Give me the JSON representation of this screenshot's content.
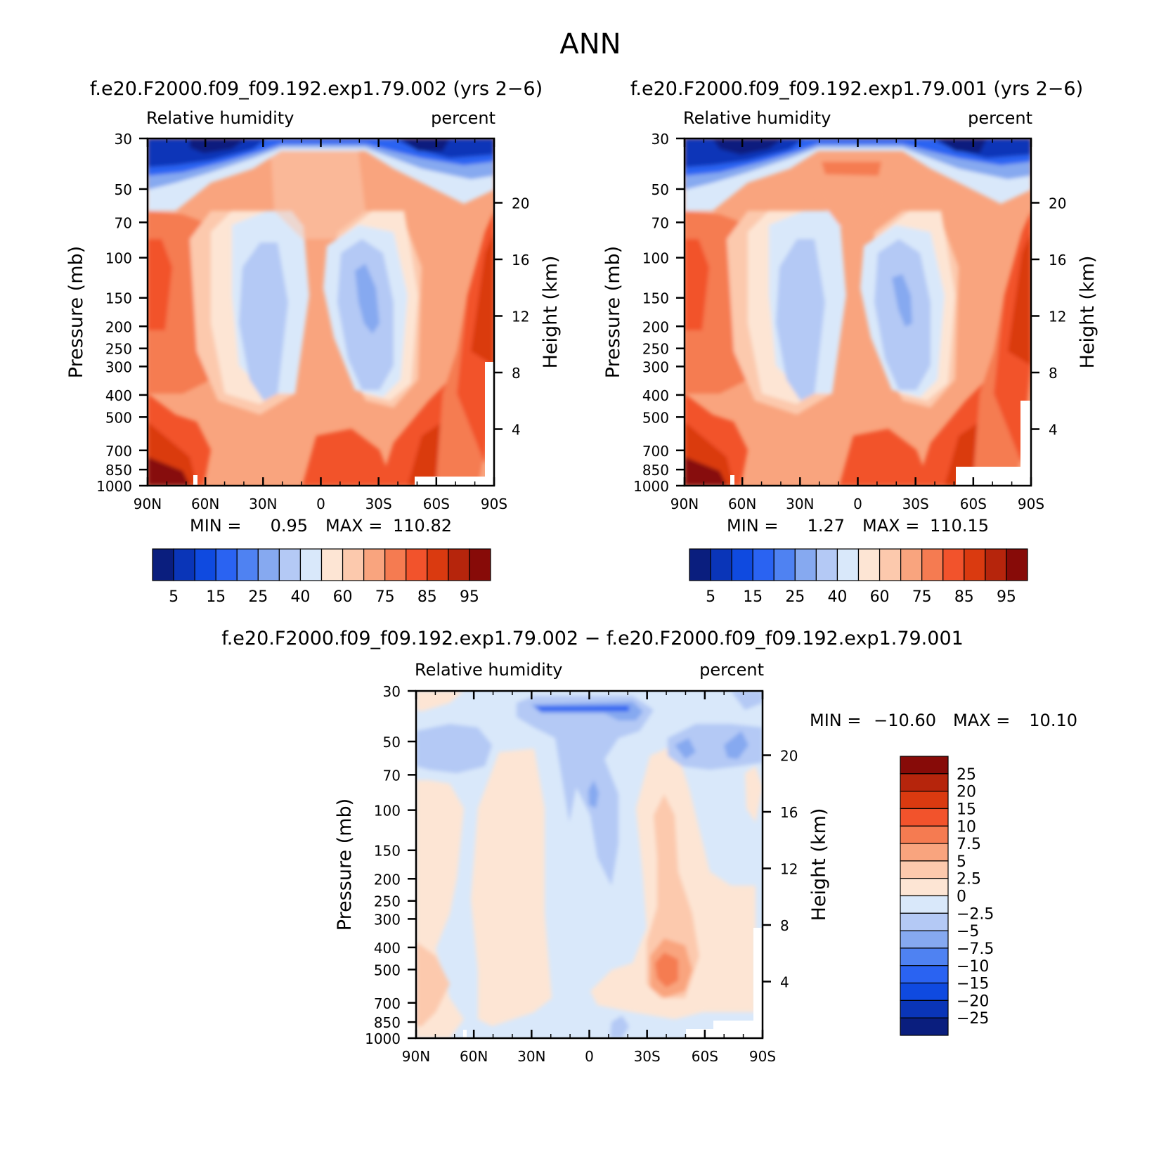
{
  "figure_title": "ANN",
  "chart_data": [
    {
      "type": "heatmap",
      "title": "f.e20.F2000.f09_f09.192.exp1.79.002 (yrs 2−6)",
      "variable_label": "Relative humidity",
      "units_label": "percent",
      "ylabel": "Pressure (mb)",
      "ylabel_right": "Height (km)",
      "x_ticks": [
        "90N",
        "60N",
        "30N",
        "0",
        "30S",
        "60S",
        "90S"
      ],
      "y_ticks": [
        "30",
        "50",
        "70",
        "100",
        "150",
        "200",
        "250",
        "300",
        "400",
        "500",
        "700",
        "850",
        "1000"
      ],
      "height_ticks": [
        "20",
        "16",
        "12",
        "8",
        "4"
      ],
      "min_label": "MIN =",
      "min_value": "0.95",
      "max_label": "MAX =",
      "max_value": "110.82",
      "colorbar_labels": [
        "5",
        "15",
        "25",
        "40",
        "60",
        "75",
        "85",
        "95"
      ],
      "colorbar_colors": [
        "#0a1e7e",
        "#0a35b8",
        "#0f4ae0",
        "#2a63f2",
        "#4f82f2",
        "#86a9f0",
        "#b4c9f5",
        "#d9e8fa",
        "#fde5d4",
        "#fcc9ad",
        "#f9a47e",
        "#f57b51",
        "#f2532c",
        "#da3a10",
        "#b6250c",
        "#870b08"
      ]
    },
    {
      "type": "heatmap",
      "title": "f.e20.F2000.f09_f09.192.exp1.79.001 (yrs 2−6)",
      "variable_label": "Relative humidity",
      "units_label": "percent",
      "ylabel": "Pressure (mb)",
      "ylabel_right": "Height (km)",
      "x_ticks": [
        "90N",
        "60N",
        "30N",
        "0",
        "30S",
        "60S",
        "90S"
      ],
      "y_ticks": [
        "30",
        "50",
        "70",
        "100",
        "150",
        "200",
        "250",
        "300",
        "400",
        "500",
        "700",
        "850",
        "1000"
      ],
      "height_ticks": [
        "20",
        "16",
        "12",
        "8",
        "4"
      ],
      "min_label": "MIN =",
      "min_value": "1.27",
      "max_label": "MAX =",
      "max_value": "110.15",
      "colorbar_labels": [
        "5",
        "15",
        "25",
        "40",
        "60",
        "75",
        "85",
        "95"
      ],
      "colorbar_colors": [
        "#0a1e7e",
        "#0a35b8",
        "#0f4ae0",
        "#2a63f2",
        "#4f82f2",
        "#86a9f0",
        "#b4c9f5",
        "#d9e8fa",
        "#fde5d4",
        "#fcc9ad",
        "#f9a47e",
        "#f57b51",
        "#f2532c",
        "#da3a10",
        "#b6250c",
        "#870b08"
      ]
    },
    {
      "type": "heatmap",
      "title": "f.e20.F2000.f09_f09.192.exp1.79.002 − f.e20.F2000.f09_f09.192.exp1.79.001",
      "variable_label": "Relative humidity",
      "units_label": "percent",
      "ylabel": "Pressure (mb)",
      "ylabel_right": "Height (km)",
      "x_ticks": [
        "90N",
        "60N",
        "30N",
        "0",
        "30S",
        "60S",
        "90S"
      ],
      "y_ticks": [
        "30",
        "50",
        "70",
        "100",
        "150",
        "200",
        "250",
        "300",
        "400",
        "500",
        "700",
        "850",
        "1000"
      ],
      "height_ticks": [
        "20",
        "16",
        "12",
        "8",
        "4"
      ],
      "min_label": "MIN =",
      "min_value": "−10.60",
      "max_label": "MAX =",
      "max_value": "10.10",
      "colorbar_labels": [
        "25",
        "20",
        "15",
        "10",
        "7.5",
        "5",
        "2.5",
        "0",
        "−2.5",
        "−5",
        "−7.5",
        "−10",
        "−15",
        "−20",
        "−25"
      ],
      "colorbar_colors": [
        "#870b08",
        "#b6250c",
        "#da3a10",
        "#f2532c",
        "#f57b51",
        "#f9a47e",
        "#fcc9ad",
        "#fde5d4",
        "#d9e8fa",
        "#b4c9f5",
        "#86a9f0",
        "#4f82f2",
        "#2a63f2",
        "#0f4ae0",
        "#0a35b8",
        "#0a1e7e"
      ]
    }
  ]
}
